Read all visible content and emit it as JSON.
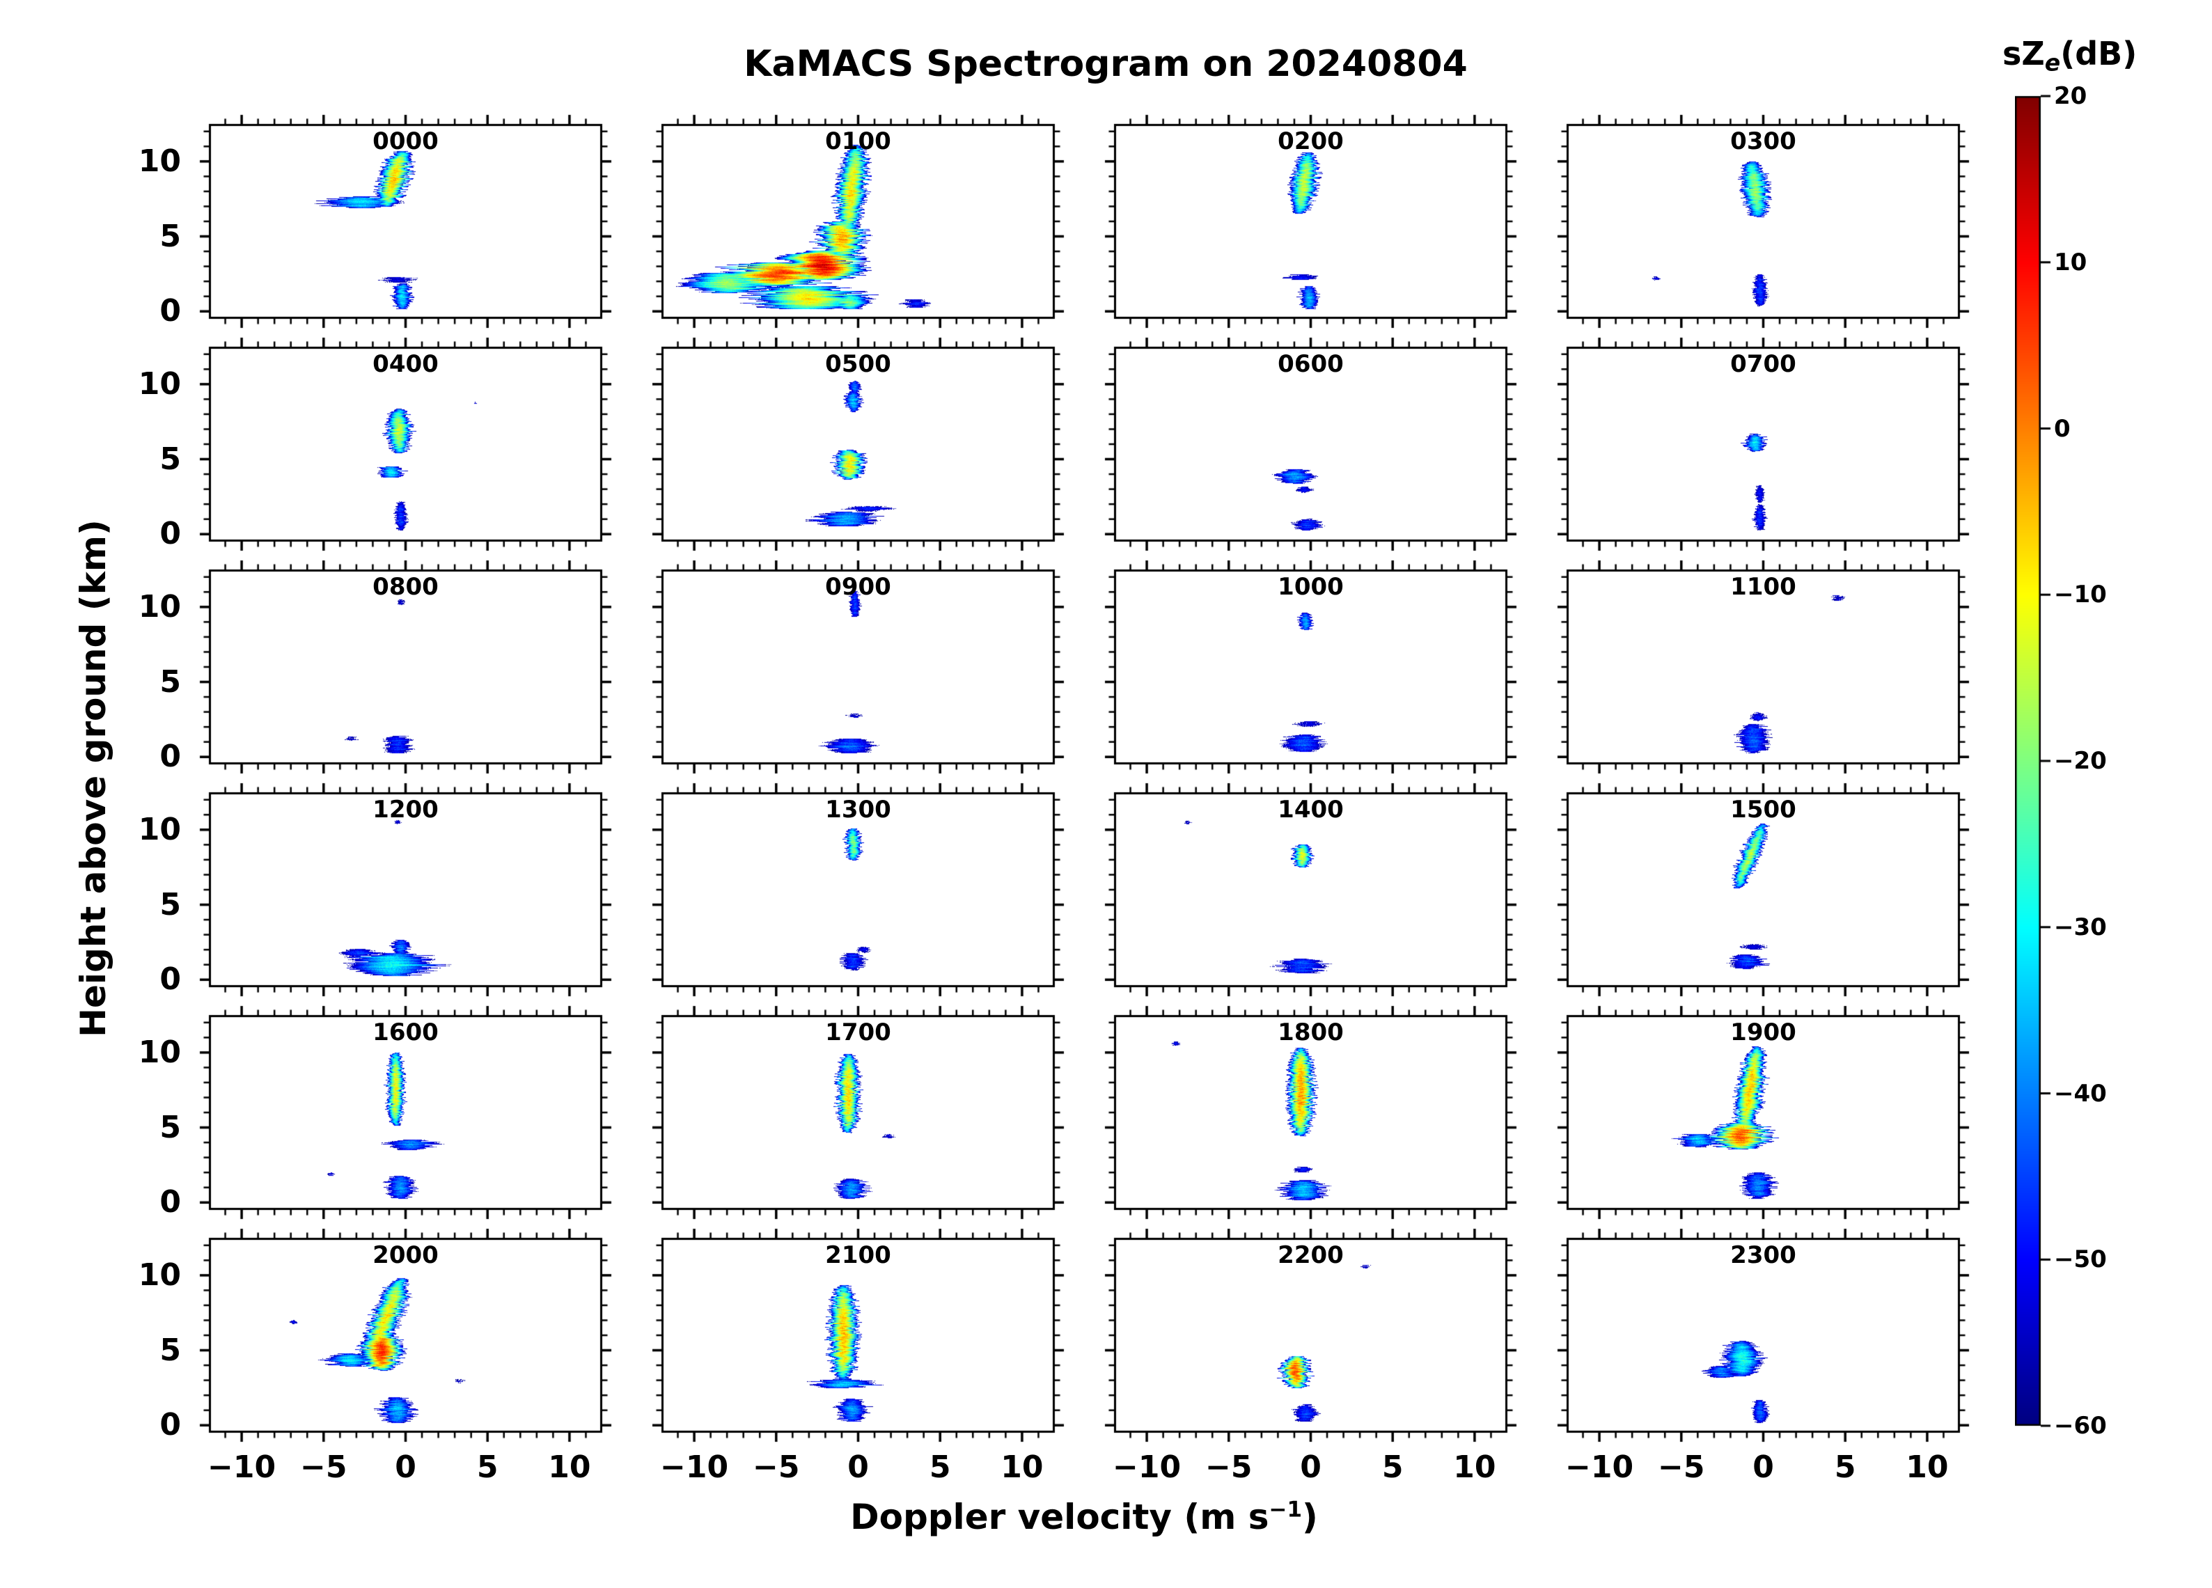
{
  "title": "KaMACS Spectrogram on 20240804",
  "axes": {
    "ylabel": "Height above ground (km)",
    "xlabel_prefix": "Doppler velocity (m s",
    "xlabel_sup": "−1",
    "xlabel_suffix": ")",
    "x_ticklabels": [
      "−10",
      "−5",
      "0",
      "5",
      "10"
    ],
    "x_tick_values": [
      -10,
      -5,
      0,
      5,
      10
    ],
    "y_ticklabels": [
      "10",
      "5",
      "0"
    ],
    "y_tick_values": [
      10,
      5,
      0
    ]
  },
  "colorbar": {
    "title_prefix": "sZ",
    "title_sub": "e",
    "title_suffix": "(dB)",
    "cmap": "jet",
    "vmin": -60,
    "vmax": 20,
    "ticklabels": [
      "20",
      "10",
      "0",
      "−10",
      "−20",
      "−30",
      "−40",
      "−50",
      "−60"
    ],
    "tick_values": [
      20,
      10,
      0,
      -10,
      -20,
      -30,
      -40,
      -50,
      -60
    ]
  },
  "chart_data": {
    "type": "heatmap",
    "subtype": "doppler-spectrogram-small-multiples",
    "grid": {
      "rows": 6,
      "cols": 4
    },
    "x_axis": {
      "label": "Doppler velocity (m s-1)",
      "range": [
        -12,
        12
      ],
      "major_ticks": [
        -10,
        -5,
        0,
        5,
        10
      ],
      "minor_tick_step": 1
    },
    "y_axis": {
      "label": "Height above ground (km)",
      "range": [
        -0.5,
        12.5
      ],
      "major_ticks": [
        0,
        5,
        10
      ],
      "minor_tick_step": 1
    },
    "value_axis": {
      "label": "sZe (dB)",
      "range": [
        -60,
        20
      ],
      "colormap": "jet"
    },
    "blob_format": "v=center Doppler velocity (m/s), h=center height (km), dv=velocity half-width (m/s), dh=height half-extent (km), p=peak spectral power (dB), t=velocity tilt bottom-to-top (m/s)",
    "panels": [
      {
        "label": "0000",
        "blobs": [
          {
            "v": -0.7,
            "h": 8.9,
            "dv": 0.9,
            "dh": 1.9,
            "p": -6,
            "t": 0.5
          },
          {
            "v": -2.8,
            "h": 7.3,
            "dv": 2.3,
            "dh": 0.4,
            "p": -32
          },
          {
            "v": -0.2,
            "h": 0.9,
            "dv": 0.6,
            "dh": 0.9,
            "p": -32
          },
          {
            "v": -0.4,
            "h": 2.0,
            "dv": 1.2,
            "dh": 0.2,
            "p": -50
          }
        ]
      },
      {
        "label": "0100",
        "blobs": [
          {
            "v": -0.4,
            "h": 8.2,
            "dv": 0.9,
            "dh": 3.0,
            "p": -8,
            "t": 0.3
          },
          {
            "v": -1.0,
            "h": 4.8,
            "dv": 1.5,
            "dh": 1.2,
            "p": -2
          },
          {
            "v": -2.2,
            "h": 3.0,
            "dv": 2.6,
            "dh": 1.0,
            "p": 13
          },
          {
            "v": -5.0,
            "h": 2.4,
            "dv": 3.4,
            "dh": 0.8,
            "p": 6
          },
          {
            "v": -8.0,
            "h": 1.8,
            "dv": 2.6,
            "dh": 0.7,
            "p": -18
          },
          {
            "v": -3.0,
            "h": 0.8,
            "dv": 3.6,
            "dh": 0.8,
            "p": -8
          },
          {
            "v": -0.5,
            "h": 0.5,
            "dv": 1.2,
            "dh": 0.5,
            "p": -20
          },
          {
            "v": 3.6,
            "h": 0.4,
            "dv": 0.9,
            "dh": 0.3,
            "p": -48
          }
        ]
      },
      {
        "label": "0200",
        "blobs": [
          {
            "v": -0.4,
            "h": 8.6,
            "dv": 0.8,
            "dh": 2.1,
            "p": -14,
            "t": 0.3
          },
          {
            "v": -0.1,
            "h": 0.8,
            "dv": 0.6,
            "dh": 0.8,
            "p": -35
          },
          {
            "v": -0.6,
            "h": 2.2,
            "dv": 1.1,
            "dh": 0.2,
            "p": -50
          }
        ]
      },
      {
        "label": "0300",
        "blobs": [
          {
            "v": -0.5,
            "h": 8.2,
            "dv": 0.8,
            "dh": 1.9,
            "p": -18,
            "t": -0.2
          },
          {
            "v": -0.2,
            "h": 1.3,
            "dv": 0.45,
            "dh": 1.1,
            "p": -45
          },
          {
            "v": -6.6,
            "h": 2.1,
            "dv": 0.3,
            "dh": 0.15,
            "p": -54
          }
        ]
      },
      {
        "label": "0400",
        "blobs": [
          {
            "v": -0.4,
            "h": 6.9,
            "dv": 0.75,
            "dh": 1.5,
            "p": -14
          },
          {
            "v": -0.9,
            "h": 4.1,
            "dv": 0.8,
            "dh": 0.4,
            "p": -30
          },
          {
            "v": -0.3,
            "h": 1.1,
            "dv": 0.4,
            "dh": 1.0,
            "p": -46
          },
          {
            "v": 4.3,
            "h": 8.8,
            "dv": 0.15,
            "dh": 0.1,
            "p": -56
          }
        ]
      },
      {
        "label": "0500",
        "blobs": [
          {
            "v": -0.5,
            "h": 4.6,
            "dv": 1.0,
            "dh": 1.0,
            "p": -8
          },
          {
            "v": -0.3,
            "h": 8.9,
            "dv": 0.5,
            "dh": 0.7,
            "p": -34
          },
          {
            "v": -0.2,
            "h": 9.9,
            "dv": 0.4,
            "dh": 0.4,
            "p": -42
          },
          {
            "v": -0.8,
            "h": 0.9,
            "dv": 2.0,
            "dh": 0.5,
            "p": -36
          },
          {
            "v": 0.6,
            "h": 1.6,
            "dv": 1.4,
            "dh": 0.2,
            "p": -50
          }
        ]
      },
      {
        "label": "0600",
        "blobs": [
          {
            "v": -0.9,
            "h": 3.8,
            "dv": 1.1,
            "dh": 0.5,
            "p": -38
          },
          {
            "v": -0.4,
            "h": 2.9,
            "dv": 0.5,
            "dh": 0.2,
            "p": -50
          },
          {
            "v": -0.2,
            "h": 0.5,
            "dv": 0.9,
            "dh": 0.4,
            "p": -46
          }
        ]
      },
      {
        "label": "0700",
        "blobs": [
          {
            "v": -0.5,
            "h": 6.1,
            "dv": 0.65,
            "dh": 0.6,
            "p": -30
          },
          {
            "v": -0.2,
            "h": 2.6,
            "dv": 0.3,
            "dh": 0.6,
            "p": -50
          },
          {
            "v": -0.2,
            "h": 1.0,
            "dv": 0.4,
            "dh": 0.9,
            "p": -46
          }
        ]
      },
      {
        "label": "0800",
        "blobs": [
          {
            "v": -0.5,
            "h": 0.7,
            "dv": 1.0,
            "dh": 0.6,
            "p": -46
          },
          {
            "v": -3.4,
            "h": 1.1,
            "dv": 0.5,
            "dh": 0.15,
            "p": -55
          },
          {
            "v": -0.3,
            "h": 10.4,
            "dv": 0.3,
            "dh": 0.2,
            "p": -55
          }
        ]
      },
      {
        "label": "0900",
        "blobs": [
          {
            "v": -0.2,
            "h": 10.3,
            "dv": 0.35,
            "dh": 0.9,
            "p": -44
          },
          {
            "v": -0.5,
            "h": 0.6,
            "dv": 1.7,
            "dh": 0.5,
            "p": -42
          },
          {
            "v": -0.2,
            "h": 2.7,
            "dv": 0.5,
            "dh": 0.15,
            "p": -54
          }
        ]
      },
      {
        "label": "1000",
        "blobs": [
          {
            "v": -0.3,
            "h": 9.1,
            "dv": 0.45,
            "dh": 0.6,
            "p": -36
          },
          {
            "v": -0.4,
            "h": 0.8,
            "dv": 1.3,
            "dh": 0.6,
            "p": -44
          },
          {
            "v": -0.2,
            "h": 2.1,
            "dv": 1.0,
            "dh": 0.2,
            "p": -52
          }
        ]
      },
      {
        "label": "1100",
        "blobs": [
          {
            "v": -0.6,
            "h": 1.1,
            "dv": 1.0,
            "dh": 1.0,
            "p": -42
          },
          {
            "v": -0.3,
            "h": 2.6,
            "dv": 0.5,
            "dh": 0.3,
            "p": -50
          },
          {
            "v": 4.6,
            "h": 10.7,
            "dv": 0.5,
            "dh": 0.2,
            "p": -54
          }
        ]
      },
      {
        "label": "1200",
        "blobs": [
          {
            "v": -0.8,
            "h": 0.9,
            "dv": 2.6,
            "dh": 0.8,
            "p": -30
          },
          {
            "v": -0.3,
            "h": 2.1,
            "dv": 0.6,
            "dh": 0.5,
            "p": -40
          },
          {
            "v": -2.9,
            "h": 1.7,
            "dv": 1.3,
            "dh": 0.25,
            "p": -47
          },
          {
            "v": -0.5,
            "h": 10.6,
            "dv": 0.2,
            "dh": 0.15,
            "p": -56
          }
        ]
      },
      {
        "label": "1300",
        "blobs": [
          {
            "v": -0.3,
            "h": 9.1,
            "dv": 0.5,
            "dh": 1.1,
            "p": -20
          },
          {
            "v": -0.3,
            "h": 1.1,
            "dv": 0.8,
            "dh": 0.6,
            "p": -45
          },
          {
            "v": 0.3,
            "h": 1.9,
            "dv": 0.5,
            "dh": 0.2,
            "p": -52
          }
        ]
      },
      {
        "label": "1400",
        "blobs": [
          {
            "v": -0.5,
            "h": 8.3,
            "dv": 0.6,
            "dh": 0.8,
            "p": -12
          },
          {
            "v": -0.5,
            "h": 0.8,
            "dv": 1.5,
            "dh": 0.5,
            "p": -44
          },
          {
            "v": -7.6,
            "h": 10.6,
            "dv": 0.25,
            "dh": 0.12,
            "p": -55
          }
        ]
      },
      {
        "label": "1500",
        "blobs": [
          {
            "v": -0.8,
            "h": 8.3,
            "dv": 0.6,
            "dh": 2.2,
            "p": -16,
            "t": 0.8
          },
          {
            "v": -1.0,
            "h": 1.1,
            "dv": 1.2,
            "dh": 0.5,
            "p": -44
          },
          {
            "v": -0.6,
            "h": 2.1,
            "dv": 0.8,
            "dh": 0.2,
            "p": -52
          }
        ]
      },
      {
        "label": "1600",
        "blobs": [
          {
            "v": -0.6,
            "h": 7.6,
            "dv": 0.55,
            "dh": 2.5,
            "p": -10
          },
          {
            "v": 0.3,
            "h": 3.8,
            "dv": 1.6,
            "dh": 0.35,
            "p": -38
          },
          {
            "v": -0.3,
            "h": 0.9,
            "dv": 0.9,
            "dh": 0.8,
            "p": -38
          },
          {
            "v": -4.6,
            "h": 1.8,
            "dv": 0.25,
            "dh": 0.12,
            "p": -55
          }
        ]
      },
      {
        "label": "1700",
        "blobs": [
          {
            "v": -0.6,
            "h": 7.3,
            "dv": 0.7,
            "dh": 2.7,
            "p": -6
          },
          {
            "v": -0.4,
            "h": 0.8,
            "dv": 1.0,
            "dh": 0.7,
            "p": -38
          },
          {
            "v": 1.9,
            "h": 4.4,
            "dv": 0.4,
            "dh": 0.15,
            "p": -52
          }
        ]
      },
      {
        "label": "1800",
        "blobs": [
          {
            "v": -0.6,
            "h": 7.4,
            "dv": 0.8,
            "dh": 3.0,
            "p": -1
          },
          {
            "v": -0.4,
            "h": 0.7,
            "dv": 1.4,
            "dh": 0.7,
            "p": -34
          },
          {
            "v": -8.3,
            "h": 10.7,
            "dv": 0.25,
            "dh": 0.15,
            "p": -50
          },
          {
            "v": -0.5,
            "h": 2.1,
            "dv": 0.6,
            "dh": 0.2,
            "p": -50
          }
        ]
      },
      {
        "label": "1900",
        "blobs": [
          {
            "v": -0.8,
            "h": 7.6,
            "dv": 0.8,
            "dh": 2.9,
            "p": -5,
            "t": 0.4
          },
          {
            "v": -1.4,
            "h": 4.4,
            "dv": 1.7,
            "dh": 0.9,
            "p": 4
          },
          {
            "v": -4.0,
            "h": 4.1,
            "dv": 1.3,
            "dh": 0.45,
            "p": -34
          },
          {
            "v": -0.3,
            "h": 1.0,
            "dv": 1.0,
            "dh": 0.9,
            "p": -40
          }
        ]
      },
      {
        "label": "2000",
        "blobs": [
          {
            "v": -1.2,
            "h": 7.2,
            "dv": 0.9,
            "dh": 2.7,
            "p": -8,
            "t": 0.9
          },
          {
            "v": -1.5,
            "h": 4.9,
            "dv": 1.2,
            "dh": 1.3,
            "p": 7
          },
          {
            "v": -3.4,
            "h": 4.3,
            "dv": 1.5,
            "dh": 0.45,
            "p": -30
          },
          {
            "v": -0.5,
            "h": 0.9,
            "dv": 1.1,
            "dh": 0.9,
            "p": -35
          },
          {
            "v": -6.9,
            "h": 6.9,
            "dv": 0.25,
            "dh": 0.15,
            "p": -52
          },
          {
            "v": 3.3,
            "h": 2.9,
            "dv": 0.3,
            "dh": 0.2,
            "p": -55
          }
        ]
      },
      {
        "label": "2100",
        "blobs": [
          {
            "v": -0.9,
            "h": 6.2,
            "dv": 0.9,
            "dh": 3.2,
            "p": -4
          },
          {
            "v": -1.0,
            "h": 2.7,
            "dv": 2.0,
            "dh": 0.3,
            "p": -35
          },
          {
            "v": -0.4,
            "h": 0.9,
            "dv": 1.0,
            "dh": 0.8,
            "p": -38
          }
        ]
      },
      {
        "label": "2200",
        "blobs": [
          {
            "v": -0.9,
            "h": 3.5,
            "dv": 0.9,
            "dh": 1.1,
            "p": 4
          },
          {
            "v": -0.3,
            "h": 0.7,
            "dv": 0.8,
            "dh": 0.6,
            "p": -45
          },
          {
            "v": 3.4,
            "h": 10.7,
            "dv": 0.35,
            "dh": 0.15,
            "p": -55
          }
        ]
      },
      {
        "label": "2300",
        "blobs": [
          {
            "v": -1.3,
            "h": 4.4,
            "dv": 1.2,
            "dh": 1.2,
            "p": -28
          },
          {
            "v": -2.6,
            "h": 3.5,
            "dv": 1.0,
            "dh": 0.4,
            "p": -40
          },
          {
            "v": -0.2,
            "h": 0.8,
            "dv": 0.5,
            "dh": 0.8,
            "p": -42
          }
        ]
      }
    ]
  }
}
